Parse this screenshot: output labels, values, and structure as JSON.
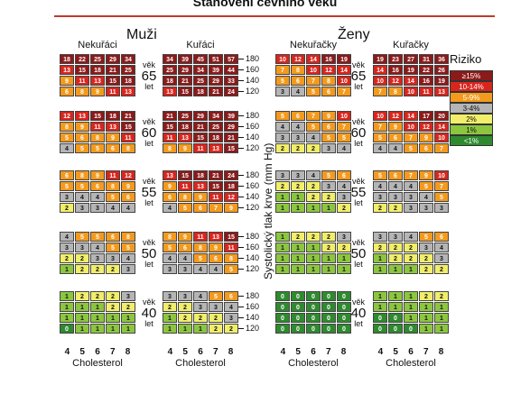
{
  "title": "Stanovení cévního věku",
  "men": {
    "label": "Muži",
    "nonsmokers": "Nekuřáci",
    "smokers": "Kuřáci"
  },
  "women": {
    "label": "Ženy",
    "nonsmokers": "Nekuřačky",
    "smokers": "Kuřačky"
  },
  "axis_label": "Systolický tlak krve (mm Hg)",
  "bp_ticks": [
    "180",
    "160",
    "140",
    "120"
  ],
  "age_word": "věk",
  "years_word": "let",
  "ages": [
    "65",
    "60",
    "55",
    "50",
    "40"
  ],
  "x_ticks": [
    "4",
    "5",
    "6",
    "7",
    "8"
  ],
  "x_label": "Cholesterol",
  "risk": {
    "title": "Riziko",
    "levels": [
      {
        "label": "≥15%",
        "color": "#8b1a1a"
      },
      {
        "label": "10-14%",
        "color": "#d7261e"
      },
      {
        "label": "5-9%",
        "color": "#f39a1e"
      },
      {
        "label": "3-4%",
        "color": "#b5b5b5"
      },
      {
        "label": "2%",
        "color": "#f1ee6a"
      },
      {
        "label": "1%",
        "color": "#8cc63f"
      },
      {
        "label": "<1%",
        "color": "#2f8a2f"
      }
    ]
  },
  "chart_data": {
    "type": "heatmap",
    "title": "Stanovení cévního věku",
    "x_label": "Cholesterol",
    "x_values": [
      4,
      5,
      6,
      7,
      8
    ],
    "y_label": "Systolický tlak krve (mm Hg)",
    "y_values": [
      180,
      160,
      140,
      120
    ],
    "panels": {
      "men_nonsmokers": {
        "65": [
          [
            18,
            22,
            25,
            29,
            34
          ],
          [
            13,
            15,
            18,
            21,
            25
          ],
          [
            9,
            11,
            13,
            15,
            18
          ],
          [
            6,
            8,
            9,
            11,
            13
          ]
        ],
        "60": [
          [
            12,
            13,
            15,
            18,
            21
          ],
          [
            8,
            9,
            11,
            13,
            15
          ],
          [
            5,
            6,
            8,
            9,
            11
          ],
          [
            4,
            5,
            5,
            6,
            8
          ]
        ],
        "55": [
          [
            6,
            8,
            9,
            11,
            12
          ],
          [
            5,
            5,
            6,
            8,
            9
          ],
          [
            3,
            4,
            4,
            5,
            6
          ],
          [
            2,
            3,
            3,
            4,
            4
          ]
        ],
        "50": [
          [
            4,
            5,
            5,
            6,
            8
          ],
          [
            3,
            3,
            4,
            5,
            5
          ],
          [
            2,
            2,
            3,
            3,
            4
          ],
          [
            1,
            2,
            2,
            2,
            3
          ]
        ],
        "40": [
          [
            1,
            2,
            2,
            2,
            3
          ],
          [
            1,
            1,
            1,
            2,
            2
          ],
          [
            1,
            1,
            1,
            1,
            1
          ],
          [
            0,
            1,
            1,
            1,
            1
          ]
        ]
      },
      "men_smokers": {
        "65": [
          [
            34,
            39,
            45,
            51,
            57
          ],
          [
            25,
            29,
            34,
            39,
            44
          ],
          [
            18,
            21,
            25,
            29,
            33
          ],
          [
            13,
            15,
            18,
            21,
            24
          ]
        ],
        "60": [
          [
            21,
            25,
            29,
            34,
            39
          ],
          [
            15,
            18,
            21,
            25,
            29
          ],
          [
            11,
            13,
            15,
            18,
            21
          ],
          [
            8,
            9,
            11,
            13,
            15
          ]
        ],
        "55": [
          [
            13,
            15,
            18,
            21,
            24
          ],
          [
            9,
            11,
            13,
            15,
            18
          ],
          [
            6,
            8,
            9,
            11,
            12
          ],
          [
            4,
            5,
            6,
            7,
            9
          ]
        ],
        "50": [
          [
            8,
            9,
            11,
            13,
            15
          ],
          [
            5,
            6,
            8,
            9,
            11
          ],
          [
            4,
            4,
            5,
            6,
            8
          ],
          [
            3,
            3,
            4,
            4,
            5
          ]
        ],
        "40": [
          [
            3,
            3,
            4,
            5,
            6
          ],
          [
            2,
            2,
            3,
            3,
            4
          ],
          [
            1,
            2,
            2,
            2,
            3
          ],
          [
            1,
            1,
            1,
            2,
            2
          ]
        ]
      },
      "women_nonsmokers": {
        "65": [
          [
            10,
            12,
            14,
            16,
            19
          ],
          [
            7,
            8,
            10,
            12,
            14
          ],
          [
            5,
            6,
            7,
            8,
            10
          ],
          [
            3,
            4,
            5,
            6,
            7
          ]
        ],
        "60": [
          [
            5,
            6,
            7,
            9,
            10
          ],
          [
            4,
            4,
            5,
            6,
            7
          ],
          [
            3,
            3,
            4,
            5,
            5
          ],
          [
            2,
            2,
            2,
            3,
            4
          ]
        ],
        "55": [
          [
            3,
            3,
            4,
            5,
            6
          ],
          [
            2,
            2,
            2,
            3,
            4
          ],
          [
            1,
            1,
            2,
            2,
            3
          ],
          [
            1,
            1,
            1,
            1,
            2
          ]
        ],
        "50": [
          [
            1,
            2,
            2,
            2,
            3
          ],
          [
            1,
            1,
            1,
            2,
            2
          ],
          [
            1,
            1,
            1,
            1,
            1
          ],
          [
            1,
            1,
            1,
            1,
            1
          ]
        ],
        "40": [
          [
            0,
            0,
            0,
            0,
            0
          ],
          [
            0,
            0,
            0,
            0,
            0
          ],
          [
            0,
            0,
            0,
            0,
            0
          ],
          [
            0,
            0,
            0,
            0,
            0
          ]
        ]
      },
      "women_smokers": {
        "65": [
          [
            19,
            23,
            27,
            31,
            36
          ],
          [
            14,
            16,
            19,
            22,
            26
          ],
          [
            10,
            12,
            14,
            16,
            19
          ],
          [
            7,
            8,
            10,
            11,
            13
          ]
        ],
        "60": [
          [
            10,
            12,
            14,
            17,
            20
          ],
          [
            7,
            9,
            10,
            12,
            14
          ],
          [
            5,
            6,
            7,
            9,
            10
          ],
          [
            4,
            4,
            5,
            6,
            7
          ]
        ],
        "55": [
          [
            5,
            6,
            7,
            9,
            10
          ],
          [
            4,
            4,
            4,
            5,
            7
          ],
          [
            3,
            3,
            3,
            4,
            5
          ],
          [
            2,
            2,
            3,
            3,
            3
          ]
        ],
        "50": [
          [
            3,
            3,
            4,
            5,
            6
          ],
          [
            2,
            2,
            2,
            3,
            4
          ],
          [
            1,
            2,
            2,
            2,
            3
          ],
          [
            1,
            1,
            1,
            2,
            2
          ]
        ],
        "40": [
          [
            1,
            1,
            1,
            2,
            2
          ],
          [
            1,
            1,
            1,
            1,
            1
          ],
          [
            0,
            0,
            1,
            1,
            1
          ],
          [
            0,
            0,
            0,
            1,
            1
          ]
        ]
      }
    }
  }
}
